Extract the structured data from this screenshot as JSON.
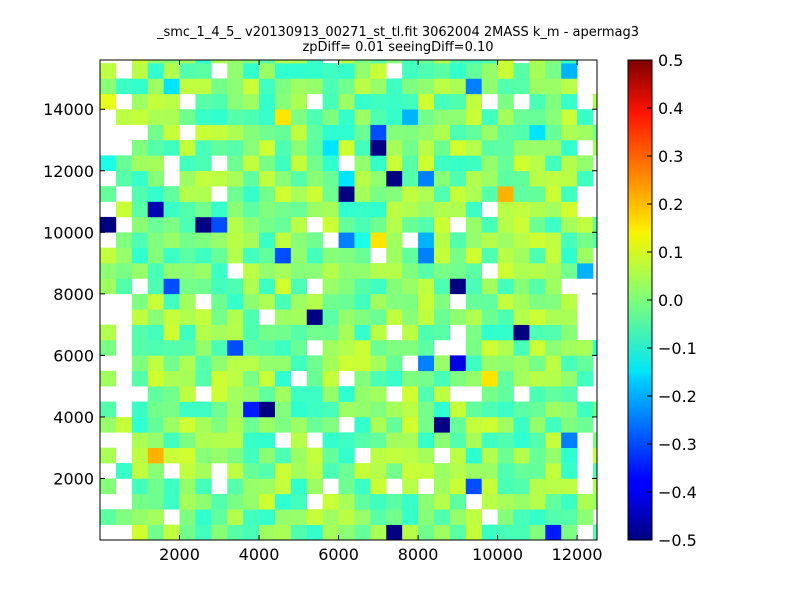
{
  "chart_data": {
    "type": "heatmap",
    "title": "_smc_1_4_5_ v20130913_00271_st_tl.fit 3062004 2MASS k_m - apermag3",
    "subtitle": "zpDiff= 0.01 seeingDiff=0.10",
    "xlabel": "",
    "ylabel": "",
    "xlim": [
      0,
      12500
    ],
    "ylim": [
      0,
      15600
    ],
    "x_ticks": [
      2000,
      4000,
      6000,
      8000,
      10000,
      12000
    ],
    "y_ticks": [
      2000,
      4000,
      6000,
      8000,
      10000,
      12000,
      14000
    ],
    "colorbar": {
      "colormap": "jet",
      "range": [
        -0.5,
        0.5
      ],
      "ticks": [
        "0.5",
        "0.4",
        "0.3",
        "0.2",
        "0.1",
        "0.0",
        "−0.1",
        "−0.2",
        "−0.3",
        "−0.4",
        "−0.5"
      ]
    },
    "grid": false,
    "cell_size": [
      400,
      500
    ],
    "cells": [
      {
        "x": 0,
        "y": 10000,
        "v": -0.5
      },
      {
        "x": 0,
        "y": 12000,
        "v": -0.1
      },
      {
        "x": 0,
        "y": 14000,
        "v": 0.1
      },
      {
        "x": 1200,
        "y": 10500,
        "v": -0.45
      },
      {
        "x": 1200,
        "y": 2500,
        "v": 0.2
      },
      {
        "x": 1600,
        "y": 8000,
        "v": -0.3
      },
      {
        "x": 1600,
        "y": 14500,
        "v": -0.15
      },
      {
        "x": 2400,
        "y": 10000,
        "v": -0.5
      },
      {
        "x": 2800,
        "y": 10000,
        "v": -0.3
      },
      {
        "x": 3200,
        "y": 6000,
        "v": -0.3
      },
      {
        "x": 3600,
        "y": 4000,
        "v": -0.35
      },
      {
        "x": 4000,
        "y": 4000,
        "v": -0.5
      },
      {
        "x": 4400,
        "y": 9000,
        "v": -0.3
      },
      {
        "x": 4400,
        "y": 13500,
        "v": 0.15
      },
      {
        "x": 5200,
        "y": 7000,
        "v": -0.5
      },
      {
        "x": 5600,
        "y": 12500,
        "v": -0.15
      },
      {
        "x": 6000,
        "y": 11000,
        "v": -0.5
      },
      {
        "x": 6000,
        "y": 11500,
        "v": -0.15
      },
      {
        "x": 6000,
        "y": 9500,
        "v": -0.25
      },
      {
        "x": 6400,
        "y": 9500,
        "v": -0.1
      },
      {
        "x": 6800,
        "y": 12500,
        "v": -0.5
      },
      {
        "x": 6800,
        "y": 13000,
        "v": -0.3
      },
      {
        "x": 6800,
        "y": 9500,
        "v": 0.15
      },
      {
        "x": 7200,
        "y": 11500,
        "v": -0.5
      },
      {
        "x": 7200,
        "y": 0,
        "v": -0.5
      },
      {
        "x": 7600,
        "y": 13500,
        "v": -0.2
      },
      {
        "x": 8000,
        "y": 11500,
        "v": -0.25
      },
      {
        "x": 8000,
        "y": 9500,
        "v": -0.2
      },
      {
        "x": 8000,
        "y": 9000,
        "v": -0.25
      },
      {
        "x": 8000,
        "y": 5500,
        "v": -0.25
      },
      {
        "x": 8400,
        "y": 3500,
        "v": -0.5
      },
      {
        "x": 8800,
        "y": 8000,
        "v": -0.5
      },
      {
        "x": 8800,
        "y": 5500,
        "v": -0.4
      },
      {
        "x": 9200,
        "y": 14500,
        "v": -0.25
      },
      {
        "x": 9200,
        "y": 1500,
        "v": -0.3
      },
      {
        "x": 9600,
        "y": 5000,
        "v": 0.15
      },
      {
        "x": 10000,
        "y": 11000,
        "v": 0.2
      },
      {
        "x": 10400,
        "y": 6500,
        "v": -0.5
      },
      {
        "x": 10800,
        "y": 13000,
        "v": -0.15
      },
      {
        "x": 11200,
        "y": 0,
        "v": -0.35
      },
      {
        "x": 11600,
        "y": 15000,
        "v": -0.2
      },
      {
        "x": 11600,
        "y": 3000,
        "v": -0.25
      },
      {
        "x": 12000,
        "y": 8500,
        "v": -0.2
      }
    ]
  }
}
